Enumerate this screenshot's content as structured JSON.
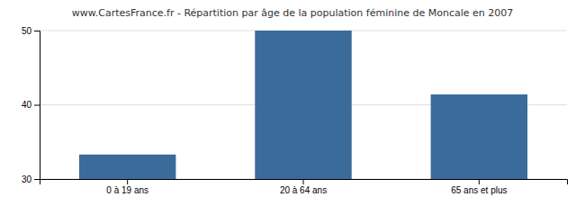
{
  "chart_data": {
    "type": "bar",
    "title": "www.CartesFrance.fr - Répartition par âge de la population féminine de Moncale en 2007",
    "categories": [
      "0 à 19 ans",
      "20 à 64 ans",
      "65 ans et plus"
    ],
    "values": [
      33.3,
      50.0,
      41.4
    ],
    "color": "#3a6b9b",
    "ylim": [
      30,
      50
    ],
    "yticks": [
      30,
      40,
      50
    ],
    "grid": true
  }
}
